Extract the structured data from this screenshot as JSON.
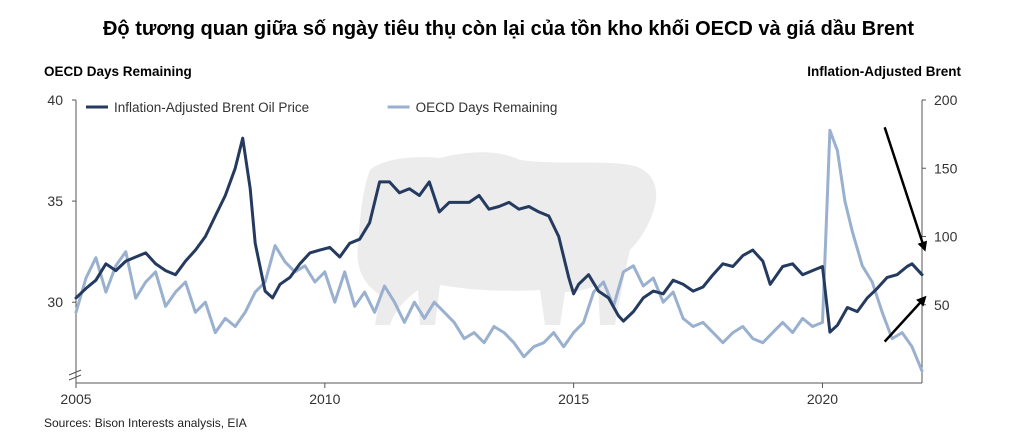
{
  "title": "Độ tương quan giữa số ngày tiêu thụ còn lại của tồn kho khối OECD và giá dầu Brent",
  "left_axis_title": "OECD Days Remaining",
  "right_axis_title": "Inflation-Adjusted Brent",
  "source": "Sources: Bison Interests analysis, EIA",
  "colors": {
    "brent": "#243a5e",
    "oecd": "#9ab0cf",
    "arrow": "#000000",
    "watermark": "#ececec"
  },
  "watermark_icon": "bison-silhouette",
  "chart_data": {
    "type": "line",
    "x_ticks": [
      "2005",
      "2010",
      "2015",
      "2020"
    ],
    "xlim": [
      2005,
      2022
    ],
    "left_axis": {
      "label": "OECD Days Remaining",
      "ylim": [
        26.5,
        40
      ],
      "ticks": [
        "30",
        "35",
        "40"
      ],
      "axis_break": true
    },
    "right_axis": {
      "label": "Inflation-Adjusted Brent",
      "ylim": [
        0,
        200
      ],
      "ticks": [
        "50",
        "100",
        "150",
        "200"
      ]
    },
    "legend": [
      "Inflation-Adjusted Brent Oil Price",
      "OECD Days Remaining"
    ],
    "legend_position": "top-left",
    "grid": false,
    "series": [
      {
        "name": "Inflation-Adjusted Brent Oil Price",
        "axis": "right",
        "x": [
          2005.0,
          2005.2,
          2005.4,
          2005.6,
          2005.8,
          2006.0,
          2006.2,
          2006.4,
          2006.6,
          2006.8,
          2007.0,
          2007.2,
          2007.4,
          2007.6,
          2007.8,
          2008.0,
          2008.2,
          2008.35,
          2008.5,
          2008.6,
          2008.8,
          2008.95,
          2009.1,
          2009.3,
          2009.5,
          2009.7,
          2009.9,
          2010.1,
          2010.3,
          2010.5,
          2010.7,
          2010.9,
          2011.0,
          2011.1,
          2011.3,
          2011.5,
          2011.7,
          2011.9,
          2012.1,
          2012.3,
          2012.5,
          2012.7,
          2012.9,
          2013.1,
          2013.3,
          2013.5,
          2013.7,
          2013.9,
          2014.1,
          2014.3,
          2014.5,
          2014.7,
          2014.9,
          2015.0,
          2015.1,
          2015.3,
          2015.5,
          2015.7,
          2015.9,
          2016.0,
          2016.2,
          2016.4,
          2016.6,
          2016.8,
          2017.0,
          2017.2,
          2017.4,
          2017.6,
          2017.8,
          2018.0,
          2018.2,
          2018.4,
          2018.6,
          2018.8,
          2018.95,
          2019.2,
          2019.4,
          2019.6,
          2019.8,
          2020.0,
          2020.15,
          2020.3,
          2020.5,
          2020.7,
          2020.9,
          2021.1,
          2021.3,
          2021.5,
          2021.7,
          2021.8,
          2022.0
        ],
        "values": [
          55,
          62,
          68,
          80,
          75,
          82,
          85,
          88,
          80,
          75,
          72,
          82,
          90,
          100,
          115,
          130,
          150,
          172,
          135,
          95,
          60,
          55,
          65,
          70,
          80,
          88,
          90,
          92,
          85,
          95,
          98,
          110,
          125,
          140,
          140,
          132,
          135,
          130,
          140,
          118,
          125,
          125,
          125,
          130,
          120,
          122,
          125,
          120,
          122,
          118,
          115,
          100,
          70,
          58,
          65,
          72,
          60,
          55,
          42,
          38,
          45,
          55,
          60,
          58,
          68,
          65,
          60,
          63,
          72,
          80,
          78,
          86,
          90,
          82,
          65,
          78,
          80,
          72,
          75,
          78,
          30,
          35,
          48,
          45,
          55,
          62,
          70,
          72,
          78,
          80,
          72
        ]
      },
      {
        "name": "OECD Days Remaining",
        "axis": "left",
        "x": [
          2005.0,
          2005.2,
          2005.4,
          2005.6,
          2005.8,
          2006.0,
          2006.2,
          2006.4,
          2006.6,
          2006.8,
          2007.0,
          2007.2,
          2007.4,
          2007.6,
          2007.8,
          2008.0,
          2008.2,
          2008.4,
          2008.6,
          2008.8,
          2009.0,
          2009.2,
          2009.4,
          2009.6,
          2009.8,
          2010.0,
          2010.2,
          2010.4,
          2010.6,
          2010.8,
          2011.0,
          2011.2,
          2011.4,
          2011.6,
          2011.8,
          2012.0,
          2012.2,
          2012.4,
          2012.6,
          2012.8,
          2013.0,
          2013.2,
          2013.4,
          2013.6,
          2013.8,
          2014.0,
          2014.2,
          2014.4,
          2014.6,
          2014.8,
          2015.0,
          2015.2,
          2015.4,
          2015.6,
          2015.8,
          2016.0,
          2016.2,
          2016.4,
          2016.6,
          2016.8,
          2017.0,
          2017.2,
          2017.4,
          2017.6,
          2017.8,
          2018.0,
          2018.2,
          2018.4,
          2018.6,
          2018.8,
          2019.0,
          2019.2,
          2019.4,
          2019.6,
          2019.8,
          2020.0,
          2020.15,
          2020.3,
          2020.45,
          2020.6,
          2020.8,
          2021.0,
          2021.2,
          2021.4,
          2021.6,
          2021.8,
          2022.0
        ],
        "values": [
          29.5,
          31.2,
          32.2,
          30.5,
          31.8,
          32.5,
          30.2,
          31.0,
          31.5,
          29.8,
          30.5,
          31.0,
          29.5,
          30.0,
          28.5,
          29.2,
          28.8,
          29.5,
          30.5,
          31.0,
          32.8,
          32.0,
          31.5,
          31.8,
          31.0,
          31.5,
          30.0,
          31.5,
          29.8,
          30.5,
          29.5,
          30.8,
          30.0,
          29.0,
          30.0,
          29.2,
          30.0,
          29.5,
          29.0,
          28.2,
          28.5,
          28.0,
          28.8,
          28.5,
          28.0,
          27.3,
          27.8,
          28.0,
          28.5,
          27.8,
          28.5,
          29.0,
          30.5,
          31.0,
          29.8,
          31.5,
          31.8,
          30.8,
          31.2,
          30.0,
          30.5,
          29.2,
          28.8,
          29.0,
          28.5,
          28.0,
          28.5,
          28.8,
          28.2,
          28.0,
          28.5,
          29.0,
          28.5,
          29.2,
          28.8,
          29.0,
          38.5,
          37.5,
          35.0,
          33.5,
          31.8,
          31.0,
          29.5,
          28.2,
          28.5,
          27.8,
          26.6
        ]
      }
    ],
    "annotations": [
      {
        "type": "arrow",
        "direction": "down",
        "from": [
          2021.25,
          180
        ],
        "to": [
          2022.05,
          91
        ]
      },
      {
        "type": "arrow",
        "direction": "up",
        "from": [
          2021.25,
          23
        ],
        "to": [
          2022.05,
          55
        ]
      }
    ]
  }
}
